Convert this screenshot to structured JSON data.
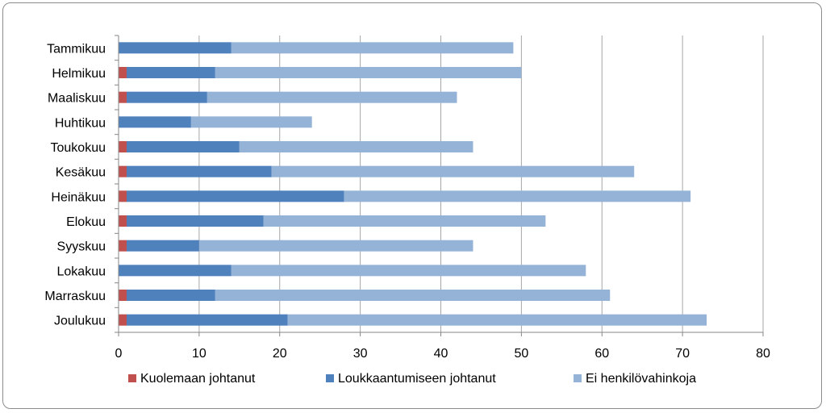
{
  "chart_data": {
    "type": "bar",
    "orientation": "horizontal",
    "stacked": true,
    "categories": [
      "Tammikuu",
      "Helmikuu",
      "Maaliskuu",
      "Huhtikuu",
      "Toukokuu",
      "Kesäkuu",
      "Heinäkuu",
      "Elokuu",
      "Syyskuu",
      "Lokakuu",
      "Marraskuu",
      "Joulukuu"
    ],
    "series": [
      {
        "name": "Kuolemaan johtanut",
        "color": "#c0504d",
        "values": [
          0,
          1,
          1,
          0,
          1,
          1,
          1,
          1,
          1,
          0,
          1,
          1
        ]
      },
      {
        "name": "Loukkaantumiseen johtanut",
        "color": "#4f81bd",
        "values": [
          14,
          11,
          10,
          9,
          14,
          18,
          27,
          17,
          9,
          14,
          11,
          20
        ]
      },
      {
        "name": "Ei henkilövahinkoja",
        "color": "#95b3d7",
        "values": [
          35,
          38,
          31,
          15,
          29,
          45,
          43,
          35,
          34,
          44,
          49,
          52
        ]
      }
    ],
    "xlim": [
      0,
      80
    ],
    "xticks": [
      "0",
      "10",
      "20",
      "30",
      "40",
      "50",
      "60",
      "70",
      "80"
    ],
    "grid": "vertical",
    "legend_position": "bottom"
  }
}
